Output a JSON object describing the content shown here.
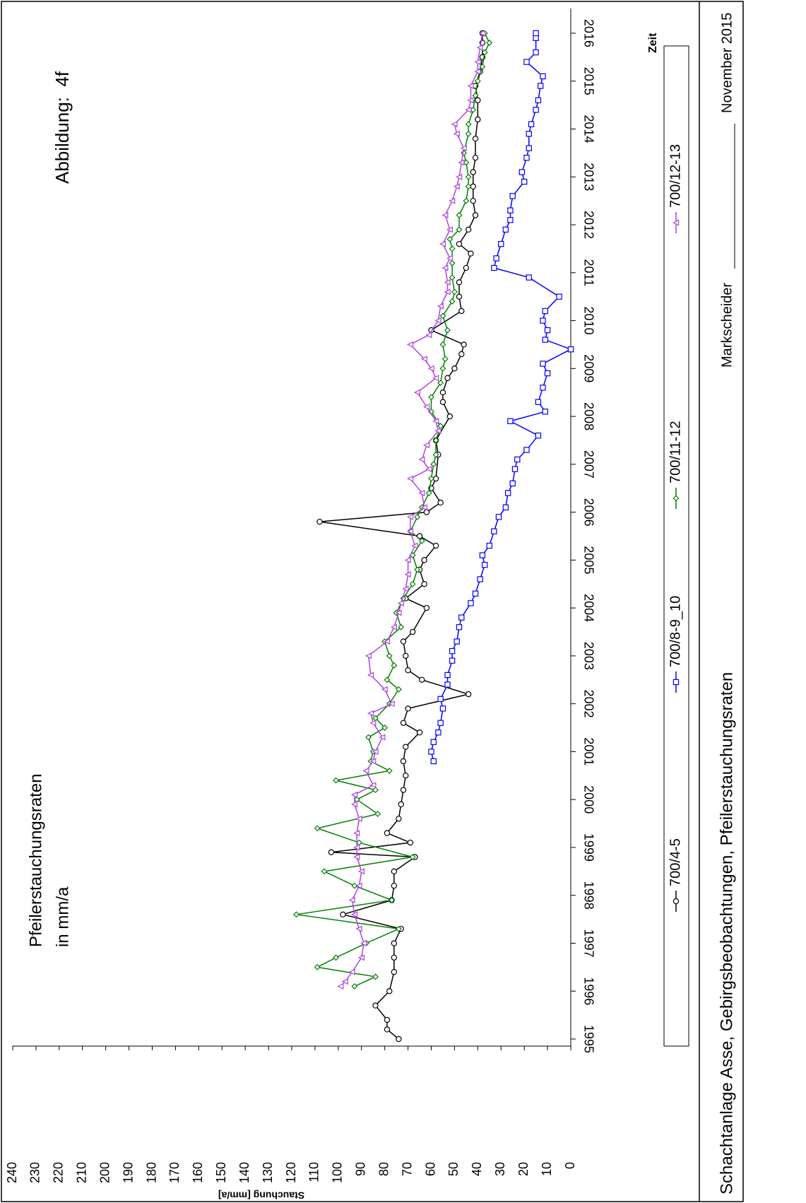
{
  "chart_data": {
    "type": "line",
    "title": "Pfeilerstauchungsraten",
    "subtitle": "in mm/a",
    "figure_label": "Abbildung:  4f",
    "ylabel": "Stauchung [mm/a]",
    "xlabel": "Zeit",
    "footer": {
      "text": "Schachtanlage Asse, Gebirgsbeobachtungen, Pfeilerstauchungsraten",
      "role": "Markscheider",
      "date": "November 2015"
    },
    "xlim": [
      1995,
      2016
    ],
    "xticks": [
      1995,
      1996,
      1997,
      1998,
      1999,
      2000,
      2001,
      2002,
      2003,
      2004,
      2005,
      2006,
      2007,
      2008,
      2009,
      2010,
      2011,
      2012,
      2013,
      2014,
      2015,
      2016
    ],
    "ylim": [
      0,
      240
    ],
    "yticks": [
      0,
      10,
      20,
      30,
      40,
      50,
      60,
      70,
      80,
      90,
      100,
      110,
      120,
      130,
      140,
      150,
      160,
      170,
      180,
      190,
      200,
      210,
      220,
      230,
      240
    ],
    "grid": false,
    "series": [
      {
        "name": "700/4-5",
        "color": "#000000",
        "marker": "circle",
        "x": [
          1995.0,
          1995.2,
          1995.4,
          1995.7,
          1996.0,
          1996.4,
          1996.7,
          1997.0,
          1997.3,
          1997.6,
          1997.9,
          1998.2,
          1998.5,
          1998.8,
          1998.9,
          1999.1,
          1999.3,
          1999.6,
          1999.9,
          2000.2,
          2000.5,
          2000.8,
          2001.1,
          2001.4,
          2001.6,
          2001.9,
          2002.2,
          2002.5,
          2002.7,
          2003.0,
          2003.3,
          2003.5,
          2004.0,
          2004.2,
          2004.5,
          2004.8,
          2005.0,
          2005.3,
          2005.5,
          2005.8,
          2006.0,
          2006.2,
          2006.5,
          2006.7,
          2007.2,
          2007.5,
          2008.0,
          2008.3,
          2008.5,
          2008.8,
          2009.0,
          2009.3,
          2009.5,
          2009.8,
          2010.2,
          2010.5,
          2010.8,
          2011.1,
          2011.4,
          2011.6,
          2011.9,
          2012.2,
          2012.5,
          2012.8,
          2013.1,
          2013.4,
          2013.8,
          2014.2,
          2014.6,
          2014.9,
          2015.2,
          2015.5,
          2015.8,
          2016.0
        ],
        "values": [
          74,
          79,
          79,
          84,
          78,
          76,
          76,
          76,
          73,
          98,
          77,
          76,
          76,
          67,
          103,
          69,
          79,
          74,
          73,
          72,
          71,
          72,
          71,
          65,
          72,
          70,
          44,
          64,
          70,
          71,
          72,
          68,
          62,
          71,
          63,
          65,
          63,
          58,
          65,
          108,
          62,
          56,
          60,
          58,
          57,
          58,
          52,
          55,
          55,
          53,
          50,
          47,
          46,
          60,
          47,
          48,
          48,
          45,
          43,
          48,
          44,
          41,
          42,
          42,
          42,
          41,
          41,
          40,
          40,
          41,
          39,
          38,
          38,
          38
        ]
      },
      {
        "name": "700/8-9_10",
        "color": "#0000ff",
        "marker": "square",
        "x": [
          2000.8,
          2001.0,
          2001.2,
          2001.4,
          2001.6,
          2001.9,
          2002.1,
          2002.4,
          2002.6,
          2002.9,
          2003.1,
          2003.3,
          2003.6,
          2003.8,
          2004.1,
          2004.3,
          2004.6,
          2004.9,
          2005.1,
          2005.3,
          2005.6,
          2005.9,
          2006.1,
          2006.4,
          2006.6,
          2006.9,
          2007.1,
          2007.3,
          2007.6,
          2007.9,
          2008.1,
          2008.3,
          2008.6,
          2008.9,
          2009.1,
          2009.4,
          2009.6,
          2009.8,
          2010.0,
          2010.2,
          2010.5,
          2010.9,
          2011.1,
          2011.3,
          2011.6,
          2011.9,
          2012.1,
          2012.3,
          2012.6,
          2012.9,
          2013.1,
          2013.4,
          2013.6,
          2013.9,
          2014.1,
          2014.4,
          2014.6,
          2014.9,
          2015.1,
          2015.4,
          2015.6,
          2015.9,
          2016.0
        ],
        "values": [
          59,
          60,
          59,
          57,
          56,
          55,
          56,
          53,
          53,
          51,
          51,
          49,
          48,
          47,
          43,
          41,
          39,
          37,
          38,
          35,
          33,
          31,
          28,
          27,
          25,
          24,
          23,
          19,
          14,
          26,
          11,
          14,
          12,
          10,
          12,
          0,
          11,
          10,
          12,
          11,
          5,
          18,
          33,
          32,
          30,
          28,
          26,
          26,
          25,
          20,
          21,
          19,
          18,
          18,
          17,
          15,
          14,
          13,
          12,
          19,
          15,
          15,
          15
        ]
      },
      {
        "name": "700/11-12",
        "color": "#008000",
        "marker": "diamond",
        "x": [
          1996.1,
          1996.3,
          1996.5,
          1996.7,
          1997.0,
          1997.3,
          1997.6,
          1997.9,
          1998.2,
          1998.5,
          1998.8,
          1999.1,
          1999.4,
          1999.7,
          2000.0,
          2000.2,
          2000.4,
          2000.6,
          2000.8,
          2001.0,
          2001.3,
          2001.5,
          2001.7,
          2002.0,
          2002.3,
          2002.5,
          2002.8,
          2003.0,
          2003.3,
          2003.6,
          2003.9,
          2004.2,
          2004.5,
          2004.8,
          2005.1,
          2005.4,
          2005.6,
          2005.9,
          2006.1,
          2006.4,
          2006.7,
          2007.0,
          2007.2,
          2007.5,
          2007.8,
          2008.1,
          2008.4,
          2008.7,
          2009.0,
          2009.2,
          2009.5,
          2009.8,
          2010.1,
          2010.4,
          2010.6,
          2010.9,
          2011.2,
          2011.5,
          2011.7,
          2011.9,
          2012.2,
          2012.5,
          2012.8,
          2013.0,
          2013.3,
          2013.5,
          2013.9,
          2014.1,
          2014.4,
          2014.7,
          2015.0,
          2015.3,
          2015.6,
          2015.8,
          2016.0
        ],
        "values": [
          93,
          84,
          109,
          101,
          88,
          74,
          118,
          77,
          93,
          106,
          68,
          91,
          109,
          83,
          92,
          84,
          101,
          78,
          86,
          85,
          87,
          80,
          84,
          78,
          74,
          79,
          76,
          78,
          80,
          73,
          75,
          72,
          68,
          66,
          68,
          64,
          69,
          66,
          64,
          61,
          60,
          59,
          58,
          58,
          56,
          60,
          60,
          56,
          55,
          54,
          55,
          53,
          55,
          51,
          50,
          51,
          51,
          51,
          52,
          48,
          48,
          45,
          44,
          44,
          45,
          46,
          44,
          44,
          42,
          41,
          40,
          38,
          37,
          35,
          37
        ]
      },
      {
        "name": "700/12-13",
        "color": "#b044e0",
        "marker": "triangle",
        "x": [
          1996.1,
          1996.2,
          1996.4,
          1996.7,
          1997.0,
          1997.3,
          1997.6,
          1997.9,
          1998.2,
          1998.5,
          1998.8,
          1999.0,
          1999.3,
          1999.6,
          1999.9,
          2000.1,
          2000.3,
          2000.6,
          2000.8,
          2001.0,
          2001.3,
          2001.6,
          2001.8,
          2002.0,
          2002.3,
          2002.6,
          2003.0,
          2003.3,
          2003.6,
          2003.9,
          2004.1,
          2004.4,
          2004.7,
          2005.0,
          2005.3,
          2005.6,
          2005.9,
          2006.1,
          2006.4,
          2006.7,
          2006.9,
          2007.1,
          2007.4,
          2007.7,
          2007.9,
          2008.2,
          2008.5,
          2008.8,
          2009.0,
          2009.2,
          2009.5,
          2009.7,
          2010.0,
          2010.3,
          2010.6,
          2010.8,
          2011.1,
          2011.3,
          2011.6,
          2011.9,
          2012.2,
          2012.5,
          2012.8,
          2013.0,
          2013.3,
          2013.6,
          2013.9,
          2014.1,
          2014.4,
          2014.6,
          2014.9,
          2015.2,
          2015.4,
          2015.7,
          2016.0
        ],
        "values": [
          99,
          97,
          94,
          90,
          89,
          91,
          93,
          94,
          91,
          90,
          92,
          92,
          92,
          91,
          93,
          93,
          85,
          88,
          85,
          84,
          81,
          85,
          86,
          77,
          80,
          86,
          87,
          79,
          76,
          74,
          73,
          71,
          70,
          70,
          67,
          69,
          69,
          63,
          64,
          69,
          61,
          64,
          62,
          57,
          58,
          62,
          66,
          58,
          60,
          63,
          69,
          61,
          57,
          56,
          53,
          53,
          54,
          52,
          55,
          52,
          54,
          51,
          49,
          48,
          47,
          46,
          49,
          50,
          44,
          43,
          43,
          40,
          40,
          39,
          38
        ]
      }
    ]
  }
}
